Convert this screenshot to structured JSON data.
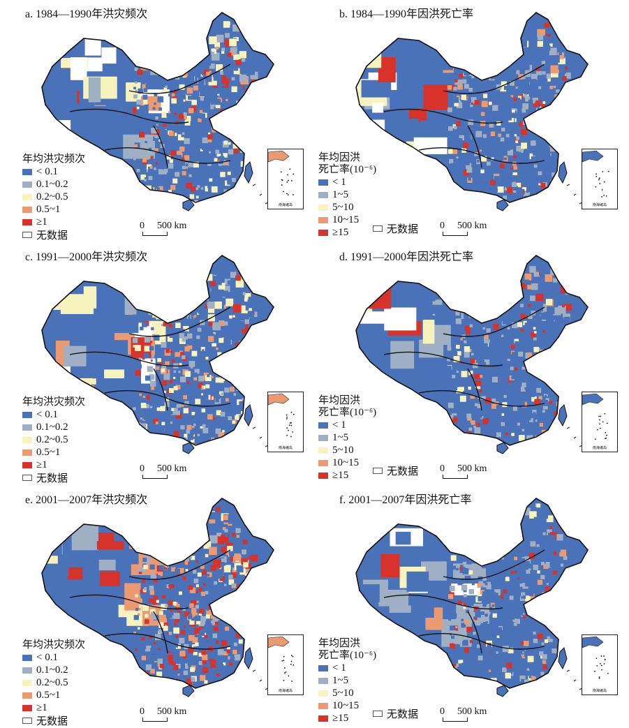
{
  "colors": {
    "lt0_1": "#4a72b8",
    "c0_1_0_2": "#9fb0c4",
    "c0_2_0_5": "#f6f3bf",
    "c0_5_1": "#ec9a72",
    "ge1": "#d8332b",
    "nodata": "#ffffff",
    "boundary": "#111111"
  },
  "scale_bar": {
    "zero": "0",
    "distance": "500 km"
  },
  "inset_label": "南海诸岛",
  "panels": [
    {
      "id": "a",
      "title": "a. 1984—1990年洪灾频次",
      "legend_title": "年均洪灾频次",
      "legend_items": [
        "< 0.1",
        "0.1~0.2",
        "0.2~0.5",
        "0.5~1",
        "≥1",
        "无数据"
      ],
      "mix": [
        0.42,
        0.18,
        0.2,
        0.12,
        0.08
      ]
    },
    {
      "id": "b",
      "title": "b. 1984—1990年因洪死亡率",
      "legend_title": "年均因洪",
      "legend_title_2": "死亡率(10⁻⁶)",
      "legend_items": [
        "< 1",
        "1~5",
        "5~10",
        "10~15",
        "≥15"
      ],
      "nodata_label": "无数据",
      "mix": [
        0.55,
        0.2,
        0.08,
        0.07,
        0.1
      ]
    },
    {
      "id": "c",
      "title": "c. 1991—2000年洪灾频次",
      "legend_title": "年均洪灾频次",
      "legend_items": [
        "< 0.1",
        "0.1~0.2",
        "0.2~0.5",
        "0.5~1",
        "≥1",
        "无数据"
      ],
      "mix": [
        0.38,
        0.2,
        0.2,
        0.13,
        0.09
      ]
    },
    {
      "id": "d",
      "title": "d. 1991—2000年因洪死亡率",
      "legend_title": "年均因洪",
      "legend_title_2": "死亡率(10⁻⁶)",
      "legend_items": [
        "< 1",
        "1~5",
        "5~10",
        "10~15",
        "≥15"
      ],
      "nodata_label": "无数据",
      "mix": [
        0.55,
        0.22,
        0.06,
        0.07,
        0.1
      ]
    },
    {
      "id": "e",
      "title": "e. 2001—2007年洪灾频次",
      "legend_title": "年均洪灾频次",
      "legend_items": [
        "< 0.1",
        "0.1~0.2",
        "0.2~0.5",
        "0.5~1",
        "≥1",
        "无数据"
      ],
      "mix": [
        0.3,
        0.14,
        0.14,
        0.17,
        0.25
      ]
    },
    {
      "id": "f",
      "title": "f. 2001—2007年因洪死亡率",
      "legend_title": "年均因洪",
      "legend_title_2": "死亡率(10⁻⁶)",
      "legend_items": [
        "< 1",
        "1~5",
        "5~10",
        "10~15",
        "≥15"
      ],
      "nodata_label": "无数据",
      "mix": [
        0.62,
        0.2,
        0.06,
        0.04,
        0.08
      ]
    }
  ]
}
